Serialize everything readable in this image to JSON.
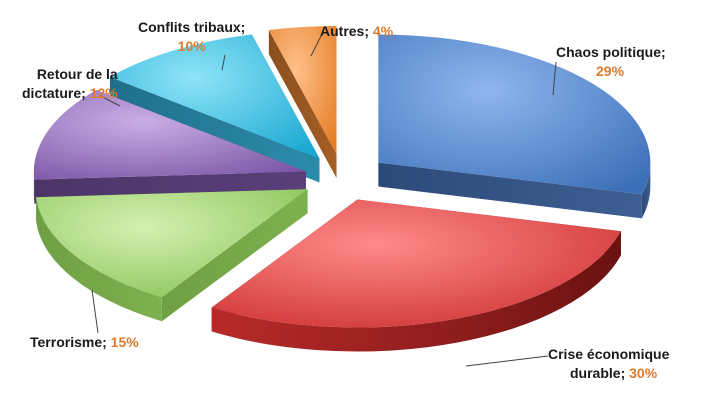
{
  "chart_data": {
    "type": "pie",
    "title": "",
    "unit": "%",
    "slices": [
      {
        "name_lines": [
          "Chaos politique;"
        ],
        "label": "Chaos politique",
        "value": 29,
        "value_text": "29%",
        "color": "#4a7cc4"
      },
      {
        "name_lines": [
          "Crise économique",
          "durable;"
        ],
        "label": "Crise économique durable",
        "value": 30,
        "value_text": "30%",
        "color": "#cc3333"
      },
      {
        "name_lines": [
          "Terrorisme;"
        ],
        "label": "Terrorisme",
        "value": 15,
        "value_text": "15%",
        "color": "#8cc55a"
      },
      {
        "name_lines": [
          "Retour de la",
          "dictature;"
        ],
        "label": "Retour de la dictature",
        "value": 12,
        "value_text": "12%",
        "color": "#7d5aa6"
      },
      {
        "name_lines": [
          "Conflits tribaux;"
        ],
        "label": "Conflits tribaux",
        "value": 10,
        "value_text": "10%",
        "color": "#2aaed6"
      },
      {
        "name_lines": [
          "Autres;"
        ],
        "label": "Autres",
        "value": 4,
        "value_text": "4%",
        "color": "#ee8a33"
      }
    ],
    "legend": "none",
    "style": "3d-exploded"
  }
}
